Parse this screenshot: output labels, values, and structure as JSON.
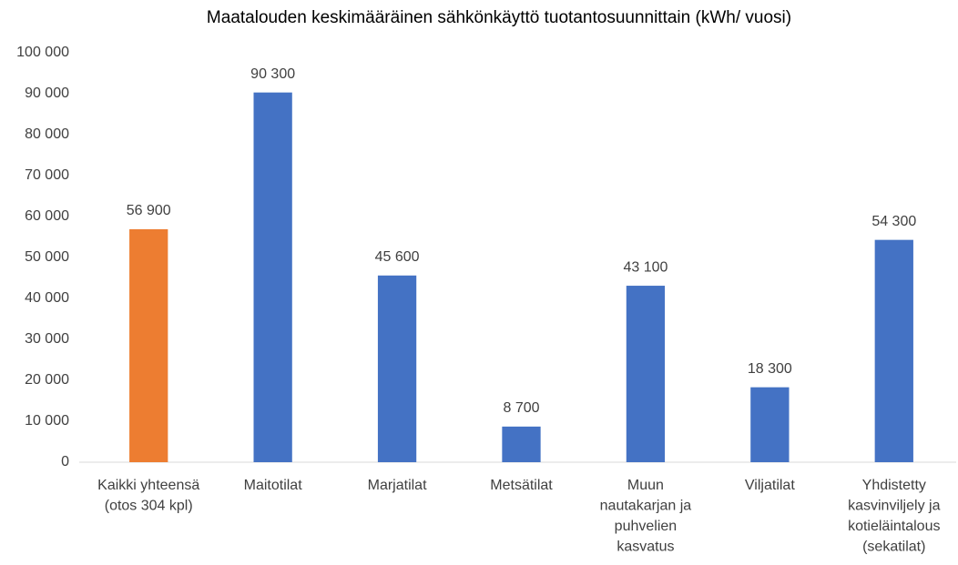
{
  "chart_data": {
    "type": "bar",
    "title": "Maatalouden keskimääräinen sähkönkäyttö tuotantosuunnittain (kWh/ vuosi)",
    "categories": [
      [
        "Kaikki yhteensä",
        "(otos 304 kpl)"
      ],
      [
        "Maitotilat"
      ],
      [
        "Marjatilat"
      ],
      [
        "Metsätilat"
      ],
      [
        "Muun",
        "nautakarjan ja",
        "puhvelien",
        "kasvatus"
      ],
      [
        "Viljatilat"
      ],
      [
        "Yhdistetty",
        "kasvinviljely ja",
        "kotieläintalous",
        "(sekatilat)"
      ]
    ],
    "values": [
      56900,
      90300,
      45600,
      8700,
      43100,
      18300,
      54300
    ],
    "value_labels": [
      "56 900",
      "90 300",
      "45 600",
      "8 700",
      "43 100",
      "18 300",
      "54 300"
    ],
    "colors": [
      "#ed7d31",
      "#4472c4",
      "#4472c4",
      "#4472c4",
      "#4472c4",
      "#4472c4",
      "#4472c4"
    ],
    "ylim": [
      0,
      100000
    ],
    "yticks": [
      0,
      {
        "value": 10000,
        "label": "10 000"
      },
      {
        "value": 20000,
        "label": "20 000"
      },
      {
        "value": 30000,
        "label": "30 000"
      },
      {
        "value": 40000,
        "label": "40 000"
      },
      {
        "value": 50000,
        "label": "50 000"
      },
      {
        "value": 60000,
        "label": "60 000"
      },
      {
        "value": 70000,
        "label": "70 000"
      },
      {
        "value": 80000,
        "label": "80 000"
      },
      {
        "value": 90000,
        "label": "90 000"
      },
      {
        "value": 100000,
        "label": "100 000"
      }
    ],
    "grid": false
  }
}
